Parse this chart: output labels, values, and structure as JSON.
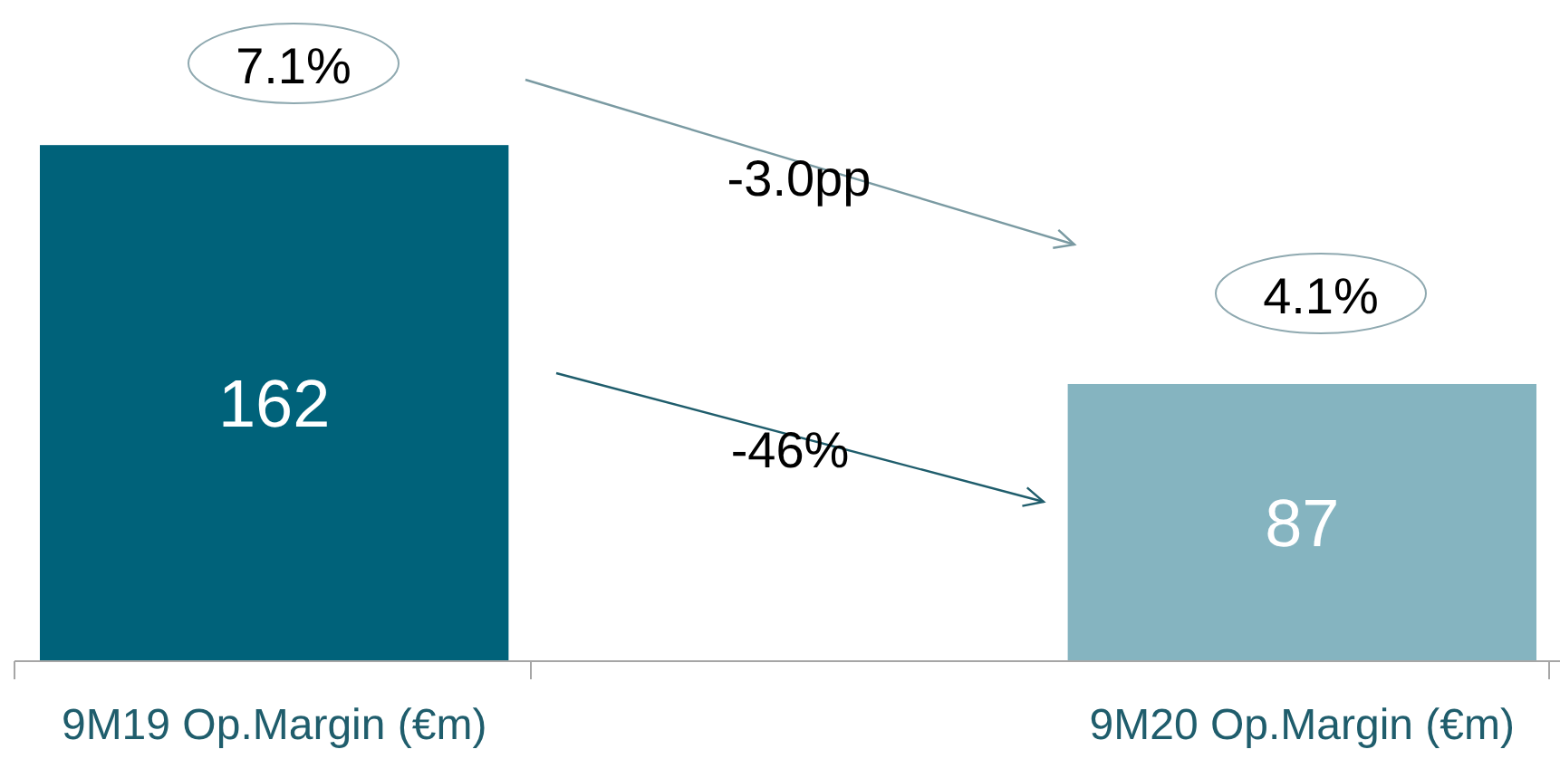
{
  "chart_data": {
    "type": "bar",
    "categories": [
      "9M19 Op.Margin (€m)",
      "9M20 Op.Margin (€m)"
    ],
    "values": [
      162,
      87
    ],
    "colors": [
      "#00627a",
      "#85b4c0"
    ],
    "data_labels": true,
    "annotations": [
      "7.1%",
      "4.1%",
      "-3.0pp",
      "-46%"
    ]
  }
}
